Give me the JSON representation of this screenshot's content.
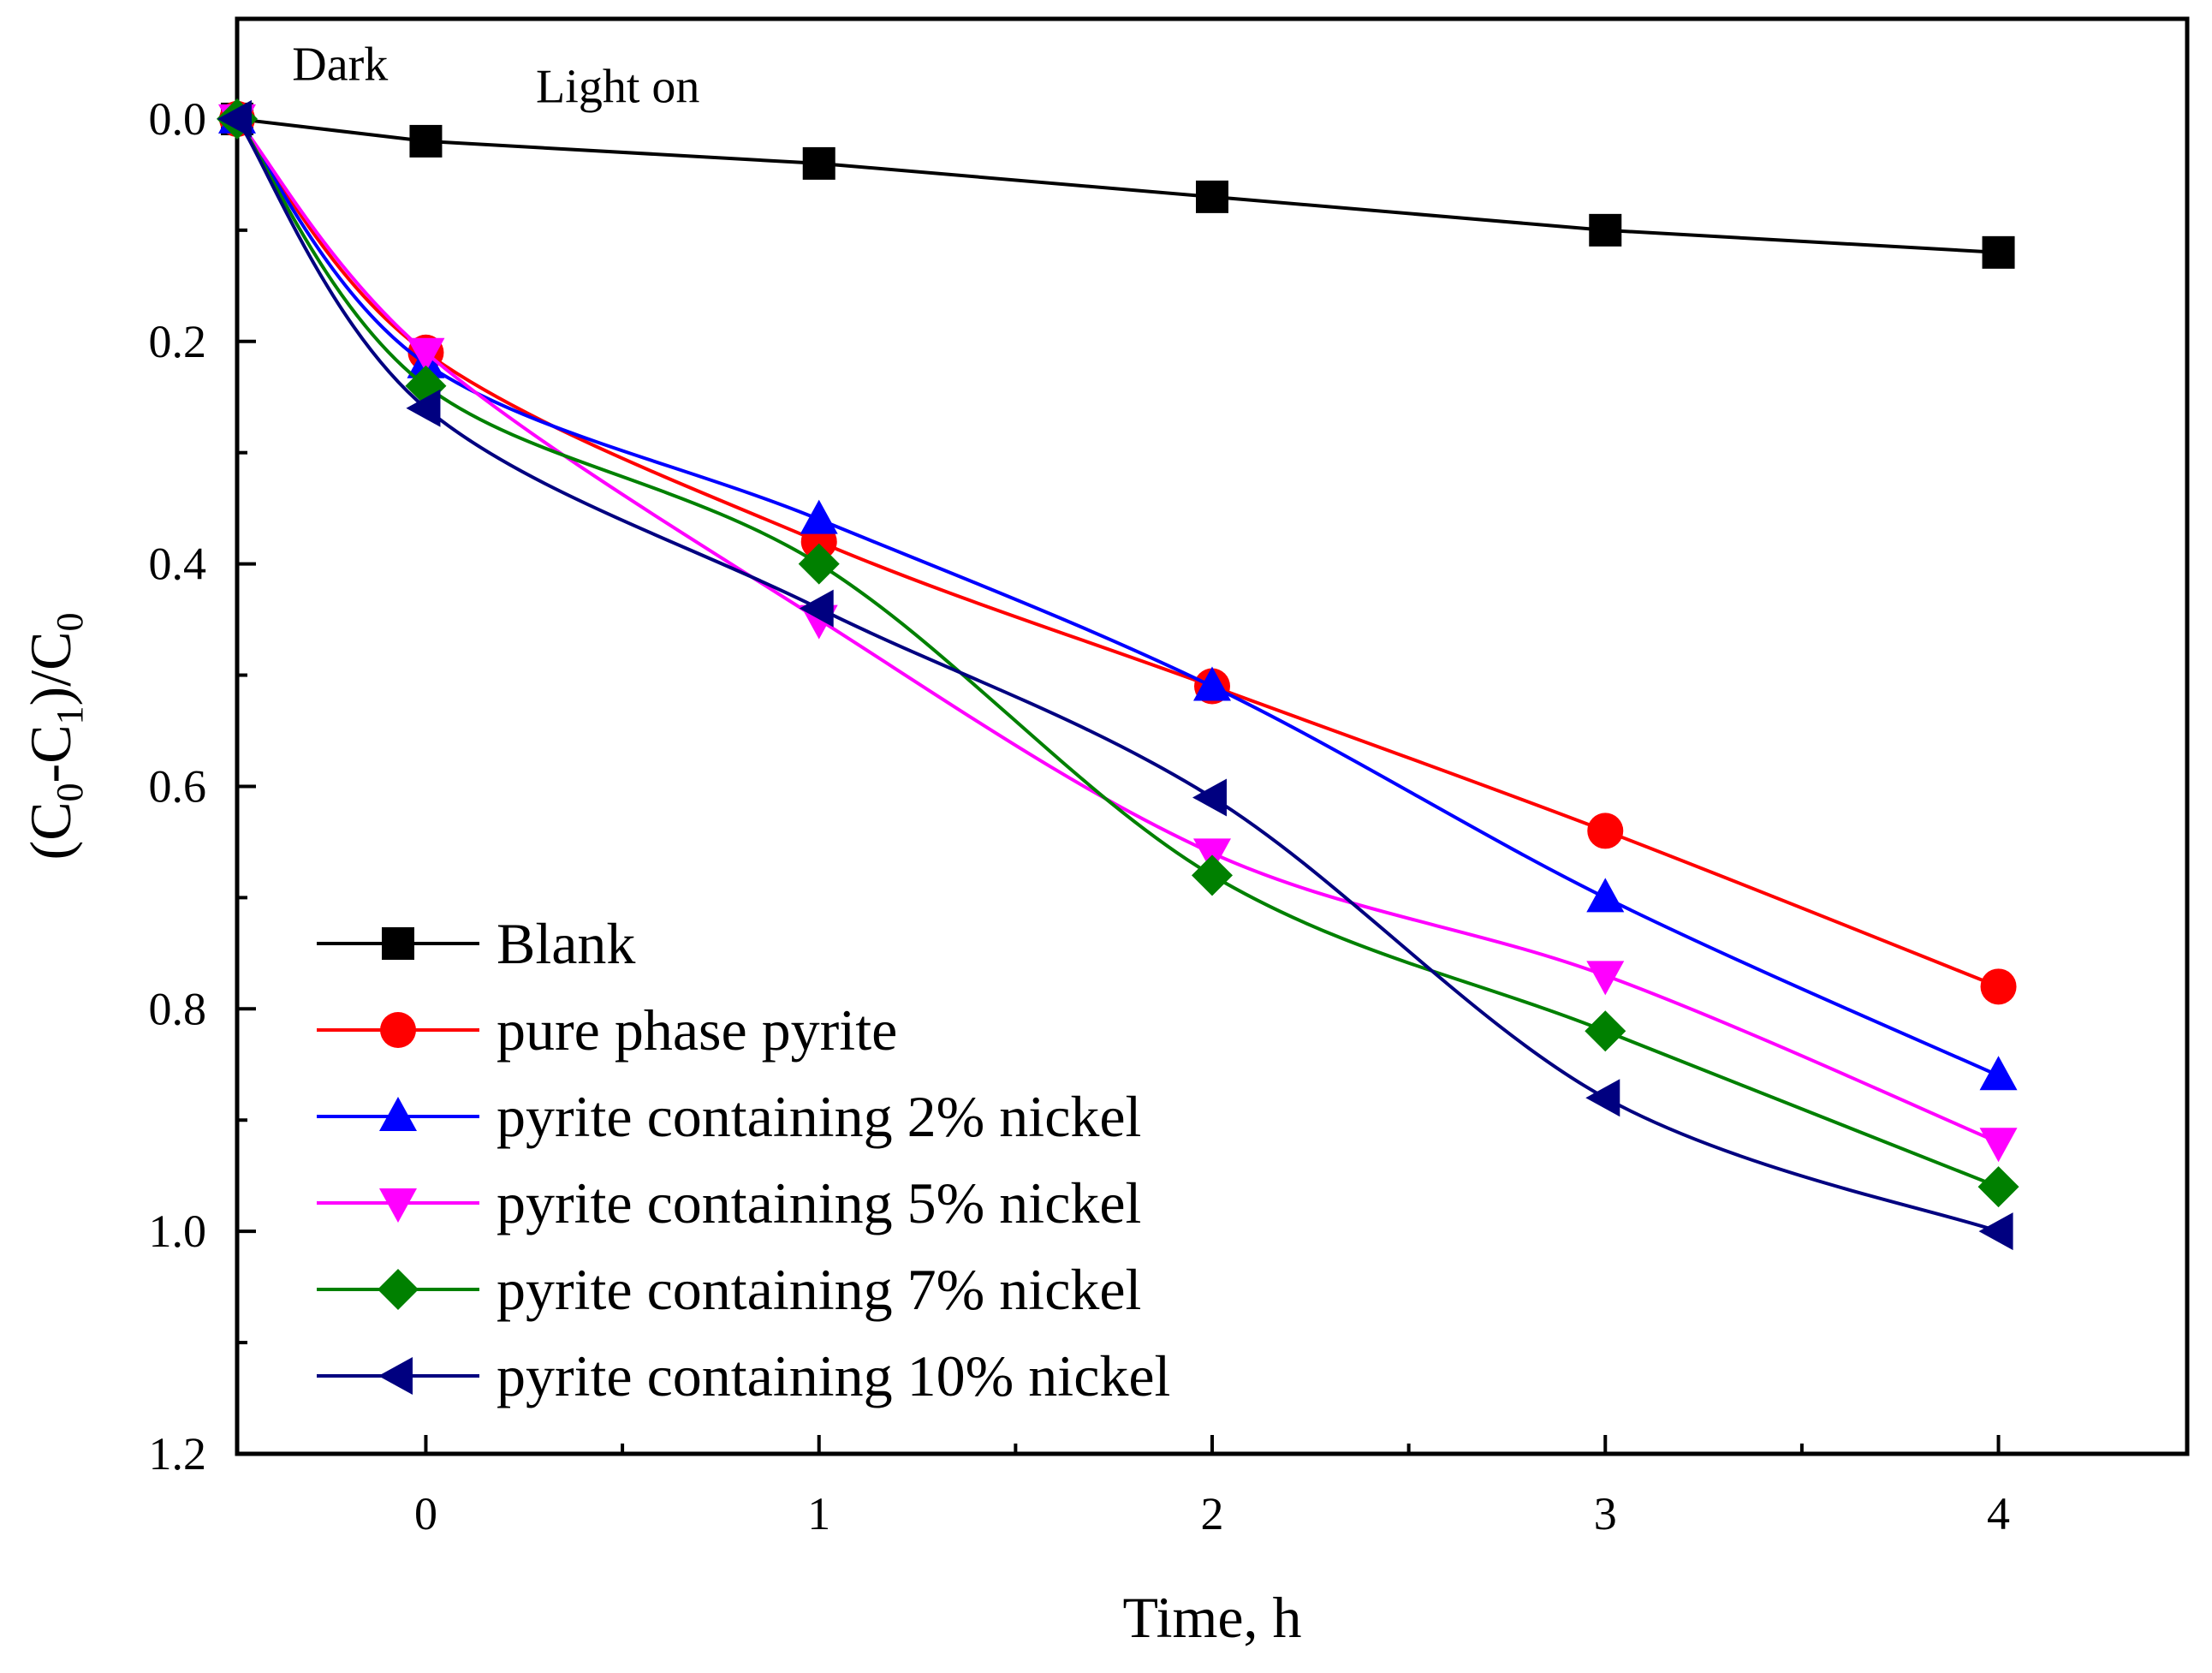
{
  "chart_data": {
    "type": "line",
    "xlabel": "Time, h",
    "ylabel": {
      "parts": [
        {
          "text": "(C",
          "sub": false
        },
        {
          "text": "0",
          "sub": true
        },
        {
          "text": "-C",
          "sub": false
        },
        {
          "text": "1",
          "sub": true
        },
        {
          "text": ")/C",
          "sub": false
        },
        {
          "text": "0",
          "sub": true
        }
      ]
    },
    "xlim": [
      -0.48,
      4.48
    ],
    "ylim": [
      -0.09,
      1.2
    ],
    "y_inverted": true,
    "x_ticks": [
      0,
      1,
      2,
      3,
      4
    ],
    "x_tick_labels": [
      "0",
      "1",
      "2",
      "3",
      "4"
    ],
    "y_ticks": [
      0.0,
      0.2,
      0.4,
      0.6,
      0.8,
      1.0,
      1.2
    ],
    "y_tick_labels": [
      "0.0",
      "0.2",
      "0.4",
      "0.6",
      "0.8",
      "1.0",
      "1.2"
    ],
    "x": [
      -0.48,
      0,
      1,
      2,
      3,
      4
    ],
    "annotations": [
      {
        "text": "Dark",
        "x": -0.34,
        "y": -0.035
      },
      {
        "text": "Light on",
        "x": 0.28,
        "y": -0.015
      }
    ],
    "legend_position": "bottom-left",
    "series": [
      {
        "name": "Blank",
        "color": "#000000",
        "marker": "square",
        "values": [
          0.0,
          0.02,
          0.04,
          0.07,
          0.1,
          0.12
        ]
      },
      {
        "name": "pure phase pyrite",
        "color": "#ff0000",
        "marker": "circle",
        "values": [
          0.0,
          0.21,
          0.38,
          0.51,
          0.64,
          0.78
        ]
      },
      {
        "name": "pyrite containing 2% nickel",
        "color": "#0000ff",
        "marker": "triangle-up",
        "values": [
          0.0,
          0.22,
          0.36,
          0.51,
          0.7,
          0.86
        ]
      },
      {
        "name": "pyrite containing 5% nickel",
        "color": "#ff00ff",
        "marker": "triangle-down",
        "values": [
          0.0,
          0.21,
          0.45,
          0.66,
          0.77,
          0.92
        ]
      },
      {
        "name": "pyrite containing 7% nickel",
        "color": "#008000",
        "marker": "diamond",
        "values": [
          0.0,
          0.24,
          0.4,
          0.68,
          0.82,
          0.96
        ]
      },
      {
        "name": "pyrite containing 10% nickel",
        "color": "#000080",
        "marker": "triangle-left",
        "values": [
          0.0,
          0.26,
          0.44,
          0.61,
          0.88,
          1.0
        ]
      }
    ]
  }
}
